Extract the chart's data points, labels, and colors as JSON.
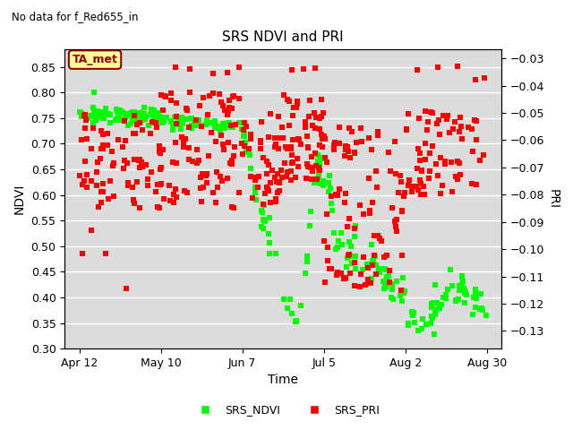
{
  "title": "SRS NDVI and PRI",
  "subtitle": "No data for f_Red655_in",
  "xlabel": "Time",
  "ylabel_left": "NDVI",
  "ylabel_right": "PRI",
  "ylim_left": [
    0.3,
    0.885
  ],
  "ylim_right": [
    -0.1365,
    -0.0265
  ],
  "yticks_left": [
    0.3,
    0.35,
    0.4,
    0.45,
    0.5,
    0.55,
    0.6,
    0.65,
    0.7,
    0.75,
    0.8,
    0.85
  ],
  "yticks_right": [
    -0.13,
    -0.12,
    -0.11,
    -0.1,
    -0.09,
    -0.08,
    -0.07,
    -0.06,
    -0.05,
    -0.04,
    -0.03
  ],
  "xtick_labels": [
    "Apr 12",
    "May 10",
    "Jun 7",
    "Jul 5",
    "Aug 2",
    "Aug 30"
  ],
  "xtick_positions": [
    102,
    130,
    158,
    186,
    214,
    242
  ],
  "xlim": [
    97,
    247
  ],
  "color_ndvi": "#00FF00",
  "color_pri": "#FF0000",
  "marker": "s",
  "markersize": 4,
  "bg_color": "#DCDCDC",
  "grid_color": "#FFFFFF",
  "legend_box_facecolor": "#FFFF99",
  "legend_box_edgecolor": "#990000",
  "legend_box_label": "TA_met",
  "title_fontsize": 11,
  "tick_fontsize": 9,
  "label_fontsize": 10
}
